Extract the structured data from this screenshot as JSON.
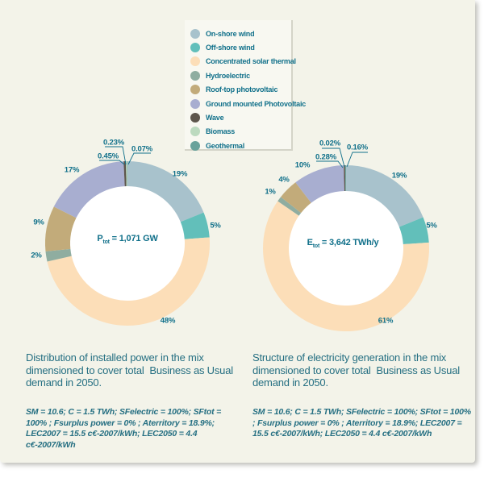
{
  "colors": {
    "page_background": "#ffffff",
    "card_background": "#f3f3e9",
    "legend_background": "#f8f8f1",
    "donut_hole": "#ffffff",
    "accent_text": "#10708a",
    "caption_text": "#256f82"
  },
  "legend": {
    "items": [
      {
        "label": "On-shore wind",
        "color": "#a8c2cc"
      },
      {
        "label": "Off-shore wind",
        "color": "#62bfba"
      },
      {
        "label": "Concentrated solar thermal",
        "color": "#fcdeb8"
      },
      {
        "label": "Hydroelectric",
        "color": "#8fada0"
      },
      {
        "label": "Roof-top photovoltaic",
        "color": "#c2ab7a"
      },
      {
        "label": "Ground mounted Photovoltaic",
        "color": "#a8aed0"
      },
      {
        "label": "Wave",
        "color": "#5d564c"
      },
      {
        "label": "Biomass",
        "color": "#bcdabf"
      },
      {
        "label": "Geothermal",
        "color": "#69a29b"
      }
    ]
  },
  "chart_data": [
    {
      "type": "pie",
      "variant": "donut",
      "title": "Distribution of installed power in the mix",
      "categories": [
        "On-shore wind",
        "Off-shore wind",
        "Concentrated solar thermal",
        "Hydroelectric",
        "Roof-top photovoltaic",
        "Ground mounted Photovoltaic",
        "Wave",
        "Biomass",
        "Geothermal"
      ],
      "values": [
        19,
        5,
        48,
        2,
        9,
        17,
        0.45,
        0.23,
        0.07
      ],
      "labels": [
        "19%",
        "5%",
        "48%",
        "2%",
        "9%",
        "17%",
        "0.45%",
        "0.23%",
        "0.07%"
      ],
      "legend_position": "top",
      "center_label": {
        "prefix": "P",
        "sub": "tot",
        "rest": " = 1,071 GW"
      },
      "caption": "Distribution of installed power in the mix dimensioned to cover total  Business as Usual demand in 2050.",
      "params": "SM = 10.6; C = 1.5 TWh; SFelectric = 100%; SFtot = 100% ; Fsurplus power = 0% ; Aterritory = 18.9%; LEC2007 = 15.5 c€-2007/kWh; LEC2050 = 4.4 c€-2007/kWh"
    },
    {
      "type": "pie",
      "variant": "donut",
      "title": "Structure of electricity generation in the mix",
      "categories": [
        "On-shore wind",
        "Off-shore wind",
        "Concentrated solar thermal",
        "Hydroelectric",
        "Roof-top photovoltaic",
        "Ground mounted Photovoltaic",
        "Wave",
        "Biomass",
        "Geothermal"
      ],
      "values": [
        19,
        5,
        61,
        1,
        4,
        10,
        0.28,
        0.02,
        0.16
      ],
      "labels": [
        "19%",
        "5%",
        "61%",
        "1%",
        "4%",
        "10%",
        "0.28%",
        "0.02%",
        "0.16%"
      ],
      "legend_position": "top",
      "center_label": {
        "prefix": "E",
        "sub": "tot",
        "rest": " = 3,642 TWh/y"
      },
      "caption": "Structure of electricity generation in the mix dimensioned to cover total  Business as Usual demand in 2050.",
      "params": "SM = 10.6; C = 1.5 TWh; SFelectric = 100%; SFtot = 100% ; Fsurplus power = 0% ; Aterritory = 18.9%; LEC2007 = 15.5 c€-2007/kWh; LEC2050 = 4.4 c€-2007/kWh"
    }
  ]
}
